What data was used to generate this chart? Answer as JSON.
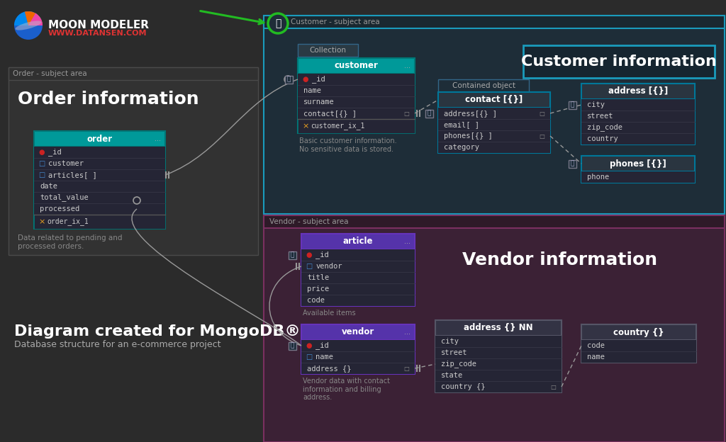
{
  "bg_color": "#2b2b2b",
  "order_area_bg": "#323232",
  "order_area_border": "#4a4a4a",
  "customer_area_bg": "#1e2d38",
  "customer_area_border": "#1a9bbc",
  "vendor_area_bg": "#3b2135",
  "vendor_area_border": "#7a3060",
  "logo_text": "MOON MODELER",
  "logo_sub": "WWW.DATANSEN.COM",
  "order_area_label": "Order - subject area",
  "order_info_title": "Order information",
  "order_table_title": "order",
  "order_index": "order_ix_1",
  "order_desc": "Data related to pending and\nprocessed orders.",
  "customer_area_label": "Customer - subject area",
  "customer_info_title": "Customer information",
  "collection_label": "Collection",
  "customer_table_title": "customer",
  "customer_index": "customer_ix_1",
  "customer_desc": "Basic customer information.\nNo sensitive data is stored.",
  "contained_obj_label": "Contained object",
  "contact_table_title": "contact [{}]",
  "address_table_title": "address [{}]",
  "address_fields": [
    "city",
    "street",
    "zip_code",
    "country"
  ],
  "phones_table_title": "phones [{}]",
  "phones_fields": [
    "phone"
  ],
  "vendor_area_label": "Vendor - subject area",
  "vendor_info_title": "Vendor information",
  "article_table_title": "article",
  "article_desc": "Available items",
  "vendor_table_title": "vendor",
  "vendor_desc": "Vendor data with contact\ninformation and billing\naddress.",
  "vendor_address_table_title": "address {} NN",
  "vendor_address_fields": [
    "city",
    "street",
    "zip_code",
    "state",
    "country {}"
  ],
  "country_table_title": "country {}",
  "country_fields": [
    "code",
    "name"
  ],
  "bottom_title": "Diagram created for MongoDB®",
  "bottom_sub": "Database structure for an e-commerce project",
  "teal_color": "#009999",
  "teal_dark": "#007777",
  "purple_color": "#5533aa",
  "purple_dark": "#4422aa",
  "dark_table_header": "#2a3540",
  "dark_header2": "#333344",
  "field_bg": "#252535",
  "field_bg2": "#252530",
  "text_light": "#cccccc",
  "text_gray": "#888888",
  "text_yellow": "#e8a020",
  "text_red": "#cc2222",
  "border_cyan": "#1a9bbc",
  "border_teal": "#007799",
  "border_purple": "#6633bb",
  "border_gray": "#555566",
  "line_color": "#999999",
  "green_arrow": "#22bb22"
}
